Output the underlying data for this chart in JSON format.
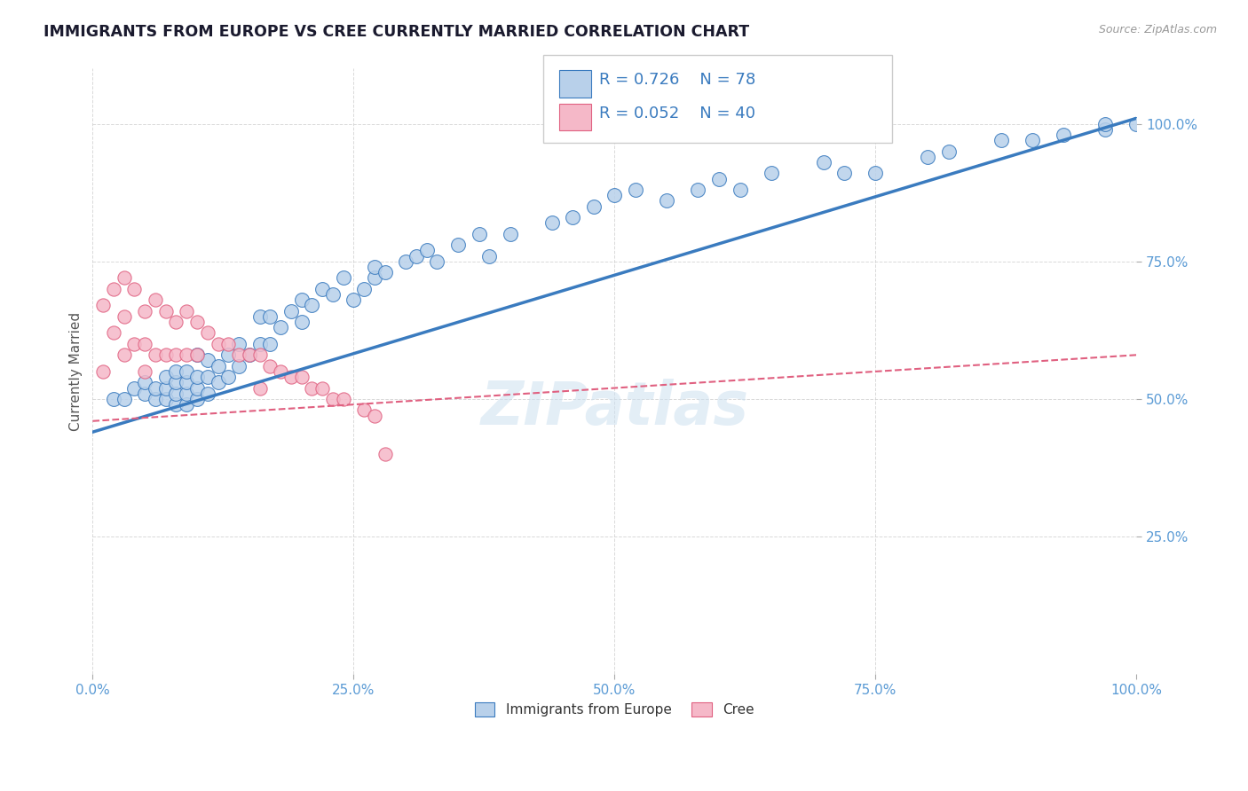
{
  "title": "IMMIGRANTS FROM EUROPE VS CREE CURRENTLY MARRIED CORRELATION CHART",
  "source": "Source: ZipAtlas.com",
  "ylabel": "Currently Married",
  "xlim": [
    0,
    100
  ],
  "ylim": [
    0,
    110
  ],
  "xticks": [
    0,
    25,
    50,
    75,
    100
  ],
  "yticks": [
    25,
    50,
    75,
    100
  ],
  "xticklabels": [
    "0.0%",
    "25.0%",
    "50.0%",
    "75.0%",
    "100.0%"
  ],
  "yticklabels": [
    "25.0%",
    "50.0%",
    "75.0%",
    "100.0%"
  ],
  "grid_color": "#d0d0d0",
  "background_color": "#ffffff",
  "watermark": "ZIPatlas",
  "legend_R1": "R = 0.726",
  "legend_N1": "N = 78",
  "legend_R2": "R = 0.052",
  "legend_N2": "N = 40",
  "blue_scatter_color": "#b8d0ea",
  "blue_line_color": "#3a7bbf",
  "pink_scatter_color": "#f5b8c8",
  "pink_line_color": "#e06080",
  "label1": "Immigrants from Europe",
  "label2": "Cree",
  "title_color": "#1a1a2e",
  "tick_label_color": "#5b9bd5",
  "blue_x": [
    2,
    3,
    4,
    5,
    5,
    6,
    6,
    7,
    7,
    7,
    8,
    8,
    8,
    8,
    9,
    9,
    9,
    9,
    10,
    10,
    10,
    10,
    11,
    11,
    11,
    12,
    12,
    13,
    13,
    14,
    14,
    15,
    16,
    16,
    17,
    17,
    18,
    19,
    20,
    20,
    21,
    22,
    23,
    24,
    25,
    26,
    27,
    27,
    28,
    30,
    31,
    32,
    33,
    35,
    37,
    38,
    40,
    44,
    46,
    48,
    50,
    52,
    55,
    58,
    60,
    62,
    65,
    70,
    72,
    75,
    80,
    82,
    87,
    90,
    93,
    97,
    97,
    100
  ],
  "blue_y": [
    50,
    50,
    52,
    51,
    53,
    50,
    52,
    50,
    52,
    54,
    49,
    51,
    53,
    55,
    49,
    51,
    53,
    55,
    50,
    52,
    54,
    58,
    51,
    54,
    57,
    53,
    56,
    54,
    58,
    56,
    60,
    58,
    60,
    65,
    60,
    65,
    63,
    66,
    64,
    68,
    67,
    70,
    69,
    72,
    68,
    70,
    72,
    74,
    73,
    75,
    76,
    77,
    75,
    78,
    80,
    76,
    80,
    82,
    83,
    85,
    87,
    88,
    86,
    88,
    90,
    88,
    91,
    93,
    91,
    91,
    94,
    95,
    97,
    97,
    98,
    99,
    100,
    100
  ],
  "pink_x": [
    1,
    1,
    2,
    2,
    3,
    3,
    3,
    4,
    4,
    5,
    5,
    5,
    6,
    6,
    7,
    7,
    8,
    8,
    9,
    9,
    10,
    10,
    11,
    12,
    13,
    14,
    15,
    16,
    16,
    17,
    18,
    19,
    20,
    21,
    22,
    23,
    24,
    26,
    27,
    28
  ],
  "pink_y": [
    67,
    55,
    70,
    62,
    72,
    65,
    58,
    70,
    60,
    66,
    60,
    55,
    68,
    58,
    66,
    58,
    64,
    58,
    66,
    58,
    64,
    58,
    62,
    60,
    60,
    58,
    58,
    58,
    52,
    56,
    55,
    54,
    54,
    52,
    52,
    50,
    50,
    48,
    47,
    40
  ],
  "pink_line_start_y": 46,
  "pink_line_end_y": 58,
  "blue_line_start_y": 44,
  "blue_line_end_y": 101
}
